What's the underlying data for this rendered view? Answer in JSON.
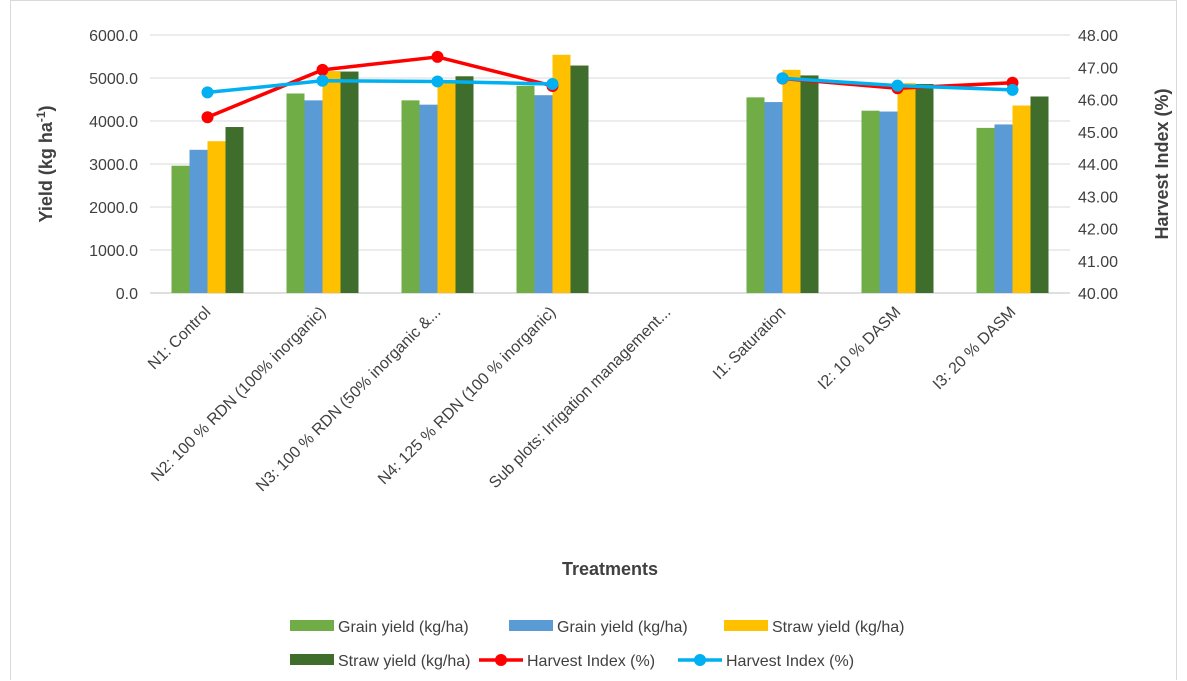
{
  "chart_data": {
    "type": "bar",
    "xlabel": "Treatments",
    "ylabel_prefix": "Yield (kg ha",
    "ylabel_sup": "-1",
    "ylabel_suffix": ")",
    "y2label": "Harvest Index (%)",
    "ylim": [
      0,
      6000
    ],
    "y2lim": [
      40,
      48
    ],
    "yticks": [
      "0.0",
      "1000.0",
      "2000.0",
      "3000.0",
      "4000.0",
      "5000.0",
      "6000.0"
    ],
    "y2ticks": [
      "40.00",
      "41.00",
      "42.00",
      "43.00",
      "44.00",
      "45.00",
      "46.00",
      "47.00",
      "48.00"
    ],
    "grid": true,
    "legend_position": "bottom",
    "categories": [
      "N1: Control",
      "N2: 100 % RDN (100% inorganic)",
      "N3: 100 % RDN (50% inorganic &...",
      "N4: 125 % RDN (100 % inorganic)",
      "Sub plots: Irrigation management...",
      "I1: Saturation",
      "I2: 10 % DASM",
      "I3: 20 % DASM"
    ],
    "bar_series": [
      {
        "name": "Grain yield (kg/ha)",
        "color": "#70ad47",
        "values": [
          2960,
          4640,
          4480,
          4820,
          null,
          4550,
          4240,
          3840
        ]
      },
      {
        "name": "Grain yield (kg/ha)",
        "color": "#5b9bd5",
        "values": [
          3330,
          4480,
          4380,
          4600,
          null,
          4440,
          4220,
          3920
        ]
      },
      {
        "name": "Straw yield (kg/ha)",
        "color": "#ffc000",
        "values": [
          3530,
          5160,
          4900,
          5540,
          null,
          5190,
          4880,
          4360
        ]
      },
      {
        "name": "Straw yield (kg/ha)",
        "color": "#3f6d2c",
        "values": [
          3860,
          5150,
          5040,
          5290,
          null,
          5060,
          4860,
          4570
        ]
      }
    ],
    "line_series": [
      {
        "name": "Harvest Index (%)",
        "color": "#ff0000",
        "values": [
          45.45,
          46.92,
          47.32,
          46.42,
          null,
          46.65,
          46.35,
          46.52
        ]
      },
      {
        "name": "Harvest Index (%)",
        "color": "#00b0f0",
        "values": [
          46.22,
          46.58,
          46.56,
          46.48,
          null,
          46.66,
          46.43,
          46.3
        ]
      }
    ]
  }
}
